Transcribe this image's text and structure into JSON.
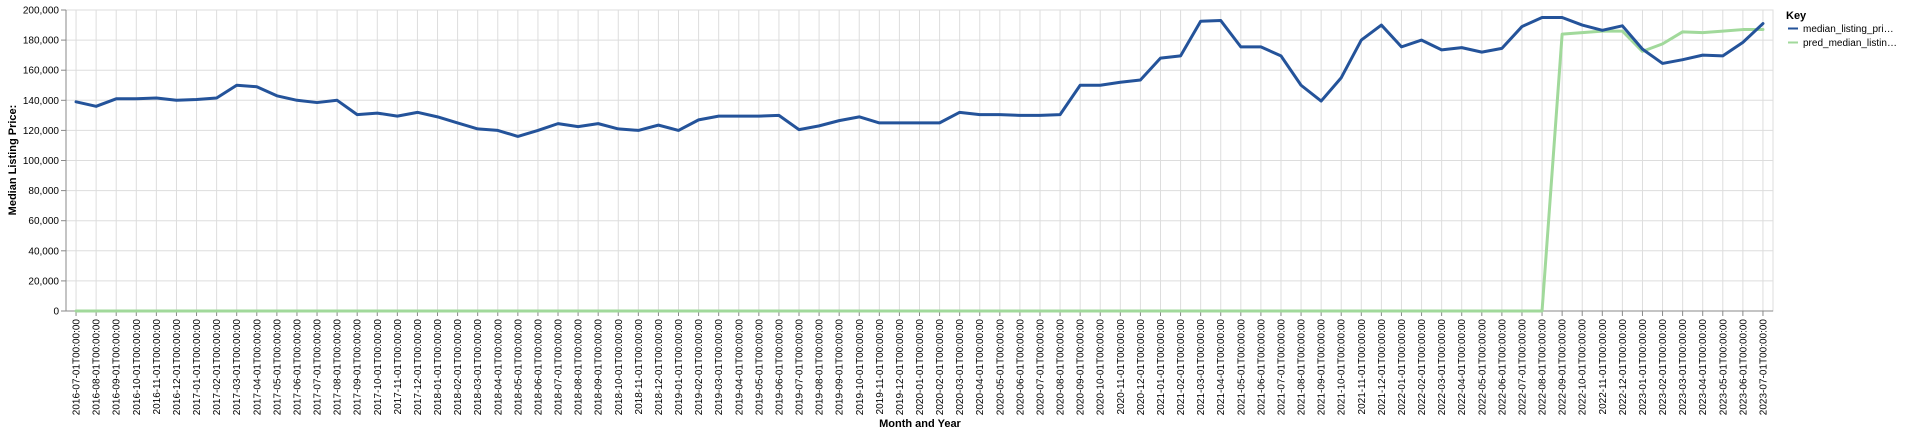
{
  "chart_data": {
    "type": "line",
    "xlabel": "Month and Year",
    "ylabel": "Median Listing Price:",
    "ylim": [
      0,
      200000
    ],
    "y_ticks": [
      "0",
      "20,000",
      "40,000",
      "60,000",
      "80,000",
      "100,000",
      "120,000",
      "140,000",
      "160,000",
      "180,000",
      "200,000"
    ],
    "grid": true,
    "legend": {
      "title": "Key",
      "placement": "right",
      "entries": [
        "median_listing_pri…",
        "pred_median_listin…"
      ]
    },
    "x": [
      "2016-07-01T00:00:00",
      "2016-08-01T00:00:00",
      "2016-09-01T00:00:00",
      "2016-10-01T00:00:00",
      "2016-11-01T00:00:00",
      "2016-12-01T00:00:00",
      "2017-01-01T00:00:00",
      "2017-02-01T00:00:00",
      "2017-03-01T00:00:00",
      "2017-04-01T00:00:00",
      "2017-05-01T00:00:00",
      "2017-06-01T00:00:00",
      "2017-07-01T00:00:00",
      "2017-08-01T00:00:00",
      "2017-09-01T00:00:00",
      "2017-10-01T00:00:00",
      "2017-11-01T00:00:00",
      "2017-12-01T00:00:00",
      "2018-01-01T00:00:00",
      "2018-02-01T00:00:00",
      "2018-03-01T00:00:00",
      "2018-04-01T00:00:00",
      "2018-05-01T00:00:00",
      "2018-06-01T00:00:00",
      "2018-07-01T00:00:00",
      "2018-08-01T00:00:00",
      "2018-09-01T00:00:00",
      "2018-10-01T00:00:00",
      "2018-11-01T00:00:00",
      "2018-12-01T00:00:00",
      "2019-01-01T00:00:00",
      "2019-02-01T00:00:00",
      "2019-03-01T00:00:00",
      "2019-04-01T00:00:00",
      "2019-05-01T00:00:00",
      "2019-06-01T00:00:00",
      "2019-07-01T00:00:00",
      "2019-08-01T00:00:00",
      "2019-09-01T00:00:00",
      "2019-10-01T00:00:00",
      "2019-11-01T00:00:00",
      "2019-12-01T00:00:00",
      "2020-01-01T00:00:00",
      "2020-02-01T00:00:00",
      "2020-03-01T00:00:00",
      "2020-04-01T00:00:00",
      "2020-05-01T00:00:00",
      "2020-06-01T00:00:00",
      "2020-07-01T00:00:00",
      "2020-08-01T00:00:00",
      "2020-09-01T00:00:00",
      "2020-10-01T00:00:00",
      "2020-11-01T00:00:00",
      "2020-12-01T00:00:00",
      "2021-01-01T00:00:00",
      "2021-02-01T00:00:00",
      "2021-03-01T00:00:00",
      "2021-04-01T00:00:00",
      "2021-05-01T00:00:00",
      "2021-06-01T00:00:00",
      "2021-07-01T00:00:00",
      "2021-08-01T00:00:00",
      "2021-09-01T00:00:00",
      "2021-10-01T00:00:00",
      "2021-11-01T00:00:00",
      "2021-12-01T00:00:00",
      "2022-01-01T00:00:00",
      "2022-02-01T00:00:00",
      "2022-03-01T00:00:00",
      "2022-04-01T00:00:00",
      "2022-05-01T00:00:00",
      "2022-06-01T00:00:00",
      "2022-07-01T00:00:00",
      "2022-08-01T00:00:00",
      "2022-09-01T00:00:00",
      "2022-10-01T00:00:00",
      "2022-11-01T00:00:00",
      "2022-12-01T00:00:00",
      "2023-01-01T00:00:00",
      "2023-02-01T00:00:00",
      "2023-03-01T00:00:00",
      "2023-04-01T00:00:00",
      "2023-05-01T00:00:00",
      "2023-06-01T00:00:00",
      "2023-07-01T00:00:00"
    ],
    "series": [
      {
        "name": "median_listing_pri…",
        "color": "#24539a",
        "values": [
          139000,
          136000,
          141000,
          141000,
          141500,
          140000,
          140500,
          141500,
          150000,
          149000,
          143000,
          140000,
          138500,
          140000,
          130500,
          131500,
          129500,
          132000,
          129000,
          125000,
          121000,
          120000,
          116000,
          120000,
          124500,
          122500,
          124500,
          121000,
          120000,
          123500,
          120000,
          127000,
          129500,
          129500,
          129500,
          130000,
          120500,
          123000,
          126500,
          129000,
          125000,
          125000,
          125000,
          125000,
          132000,
          130500,
          130500,
          130000,
          130000,
          130500,
          150000,
          150000,
          152000,
          153500,
          168000,
          169500,
          192500,
          193000,
          175500,
          175500,
          169500,
          150000,
          139500,
          155000,
          180000,
          190000,
          175500,
          180000,
          173500,
          175000,
          172000,
          174500,
          189000,
          195000,
          195000,
          190000,
          186500,
          189500,
          174000,
          164500,
          167000,
          170000,
          169500,
          178500,
          191000
        ]
      },
      {
        "name": "pred_median_listin…",
        "color": "#a1d99b",
        "values": [
          0,
          0,
          0,
          0,
          0,
          0,
          0,
          0,
          0,
          0,
          0,
          0,
          0,
          0,
          0,
          0,
          0,
          0,
          0,
          0,
          0,
          0,
          0,
          0,
          0,
          0,
          0,
          0,
          0,
          0,
          0,
          0,
          0,
          0,
          0,
          0,
          0,
          0,
          0,
          0,
          0,
          0,
          0,
          0,
          0,
          0,
          0,
          0,
          0,
          0,
          0,
          0,
          0,
          0,
          0,
          0,
          0,
          0,
          0,
          0,
          0,
          0,
          0,
          0,
          0,
          0,
          0,
          0,
          0,
          0,
          0,
          0,
          0,
          0,
          184000,
          185000,
          186000,
          186000,
          172500,
          177500,
          185500,
          185000,
          186000,
          187000,
          187000
        ]
      }
    ]
  }
}
